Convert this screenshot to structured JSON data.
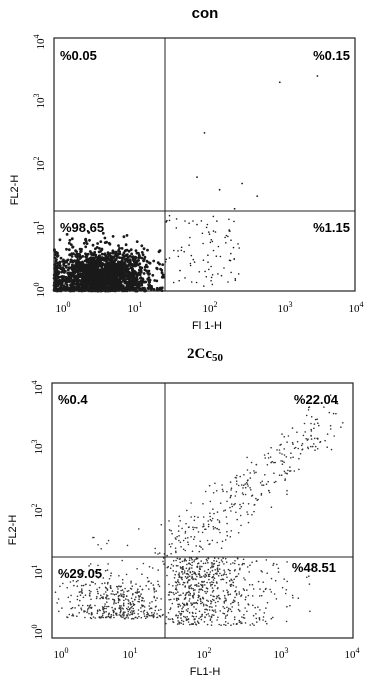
{
  "chart_data": [
    {
      "type": "scatter",
      "title": "con",
      "xlabel": "Fl 1-H",
      "ylabel": "FL2-H",
      "x_scale": "log",
      "y_scale": "log",
      "xlim": [
        1,
        10000
      ],
      "ylim": [
        1,
        10000
      ],
      "x_ticks": [
        "10",
        "10",
        "10",
        "10",
        "10"
      ],
      "x_tick_exponents": [
        "0",
        "1",
        "2",
        "3",
        "4"
      ],
      "y_ticks": [
        "10",
        "10",
        "10",
        "10",
        "10"
      ],
      "y_tick_exponents": [
        "0",
        "1",
        "2",
        "3",
        "4"
      ],
      "quadrant_gate": {
        "x": 30,
        "y": 18
      },
      "quadrants": {
        "upper_left": "%0.05",
        "upper_right": "%0.15",
        "lower_left": "%98.65",
        "lower_right": "%1.15"
      },
      "quadrant_values": {
        "upper_left": 0.05,
        "upper_right": 0.15,
        "lower_left": 98.65,
        "lower_right": 1.15
      },
      "population_center": {
        "x": 4,
        "y": 1.6
      },
      "dot_color": "#1a1a1a"
    },
    {
      "type": "scatter",
      "title_main": "2Cc",
      "title_sub": "50",
      "xlabel": "FL1-H",
      "ylabel": "FL2-H",
      "x_scale": "log",
      "y_scale": "log",
      "xlim": [
        1,
        10000
      ],
      "ylim": [
        1,
        10000
      ],
      "x_ticks": [
        "10",
        "10",
        "10",
        "10",
        "10"
      ],
      "x_tick_exponents": [
        "0",
        "1",
        "2",
        "3",
        "4"
      ],
      "y_ticks": [
        "10",
        "10",
        "10",
        "10",
        "10"
      ],
      "y_tick_exponents": [
        "0",
        "1",
        "2",
        "3",
        "4"
      ],
      "quadrant_gate": {
        "x": 30,
        "y": 18
      },
      "quadrants": {
        "upper_left": "%0.4",
        "upper_right": "%22.04",
        "lower_left": "%29.05",
        "lower_right": "%48.51"
      },
      "quadrant_values": {
        "upper_left": 0.4,
        "upper_right": 22.04,
        "lower_left": 29.05,
        "lower_right": 48.51
      },
      "dot_color": "#333333"
    }
  ]
}
